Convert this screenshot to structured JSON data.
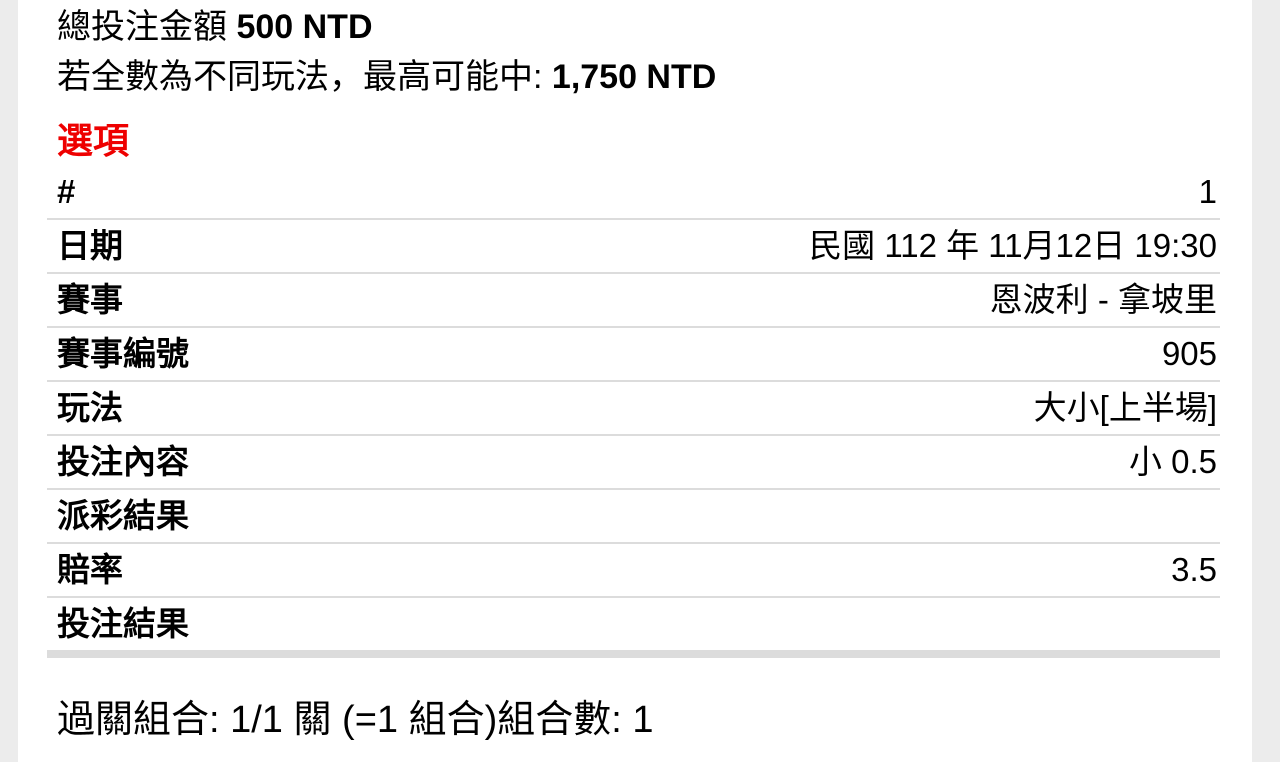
{
  "page": {
    "summary": {
      "total_label": "總投注金額",
      "total_amount": "500 NTD",
      "max_win_label": "若全數為不同玩法，最高可能中:",
      "max_win_amount": "1,750 NTD"
    },
    "section_title": "選項",
    "selection_table": {
      "rows": [
        {
          "label": "#",
          "value": "1"
        },
        {
          "label": "日期",
          "value": "民國 112 年 11月12日 19:30"
        },
        {
          "label": "賽事",
          "value": "恩波利 - 拿坡里"
        },
        {
          "label": "賽事編號",
          "value": "905"
        },
        {
          "label": "玩法",
          "value": "大小[上半場]"
        },
        {
          "label": "投注內容",
          "value": "小 0.5"
        },
        {
          "label": "派彩結果",
          "value": ""
        },
        {
          "label": "賠率",
          "value": "3.5"
        },
        {
          "label": "投注結果",
          "value": ""
        }
      ]
    },
    "footer": {
      "combo_text": "過關組合: 1/1 關 (=1 組合)組合數: 1"
    },
    "colors": {
      "accent_red": "#ee0000",
      "divider_gray": "#dcdcdc",
      "page_background": "#ffffff",
      "body_background": "#ececec"
    }
  }
}
